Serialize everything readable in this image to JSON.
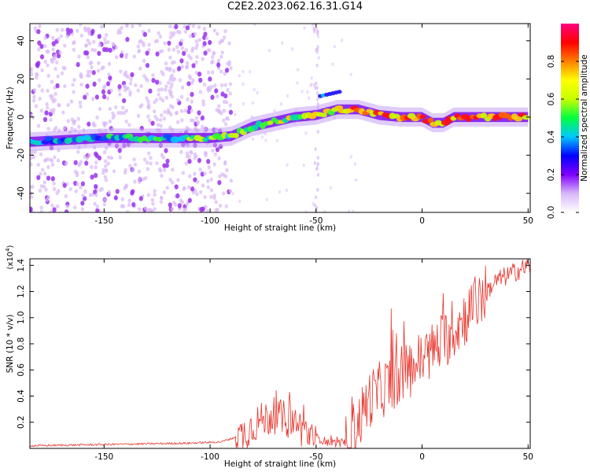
{
  "title": "C2E2.2023.062.16.31.G14",
  "chart_data": [
    {
      "type": "heatmap",
      "xlabel": "Height of straight line (km)",
      "ylabel": "Frequency (Hz)",
      "xlim": [
        -185,
        51
      ],
      "ylim": [
        -50,
        49
      ],
      "xticks": [
        -150,
        -100,
        -50,
        0,
        50
      ],
      "yticks": [
        -40,
        -20,
        0,
        20,
        40
      ],
      "colorbar": {
        "label": "Normalized spectral amplitude",
        "range": [
          0,
          1
        ],
        "ticks": [
          "0.0",
          "0.2",
          "0.4",
          "0.6",
          "0.8"
        ],
        "colors": [
          "#ffffff",
          "#d8b8f8",
          "#8000ff",
          "#0000ff",
          "#00c8ff",
          "#00ff40",
          "#c8ff00",
          "#ffff00",
          "#ff8000",
          "#ff0000",
          "#ff0080"
        ]
      },
      "ridge": {
        "x": [
          -185,
          -150,
          -100,
          -90,
          -80,
          -60,
          -50,
          -40,
          -30,
          -20,
          -10,
          0,
          5,
          10,
          15,
          50
        ],
        "frequency": [
          -13,
          -11,
          -11,
          -10,
          -5,
          0,
          1,
          4,
          4,
          1,
          0,
          0,
          -3,
          -3,
          0,
          0
        ]
      },
      "noise_region_x": [
        -185,
        -90
      ]
    },
    {
      "type": "line",
      "xlabel": "Height of straight line (km)",
      "ylabel": "SNR (10 * v/v)",
      "yscale_label": "(x10",
      "yscale_exp": "4",
      "yscale_close": ")",
      "xlim": [
        -185,
        51
      ],
      "ylim": [
        0,
        1.45
      ],
      "xticks": [
        -150,
        -100,
        -50,
        0,
        50
      ],
      "yticks": [
        "0.2",
        "0.4",
        "0.6",
        "0.8",
        "1.0",
        "1.2",
        "1.4"
      ],
      "line_color": "#e8332a",
      "trend": {
        "x": [
          -185,
          -150,
          -110,
          -95,
          -85,
          -78,
          -70,
          -60,
          -55,
          -45,
          -36,
          -30,
          -25,
          -15,
          -5,
          5,
          15,
          25,
          35,
          45,
          51
        ],
        "y": [
          0.02,
          0.03,
          0.04,
          0.05,
          0.1,
          0.2,
          0.25,
          0.2,
          0.12,
          0.05,
          0.03,
          0.2,
          0.38,
          0.5,
          0.62,
          0.75,
          0.9,
          1.1,
          1.28,
          1.36,
          1.4
        ]
      }
    }
  ]
}
